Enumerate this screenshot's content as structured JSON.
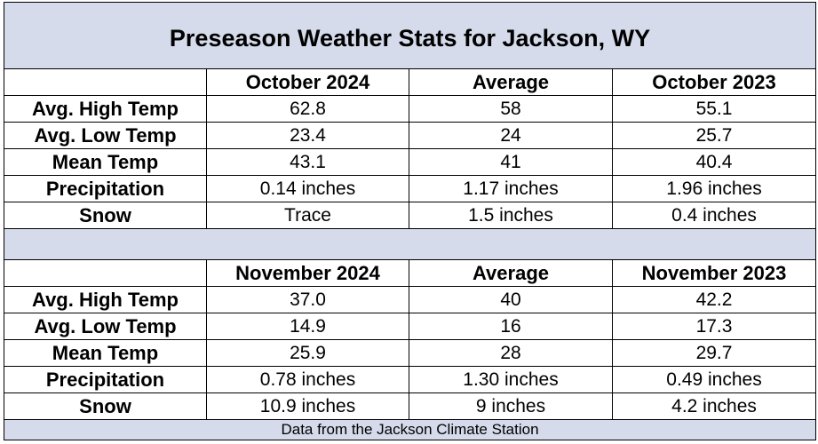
{
  "title": "Preseason Weather Stats for Jackson, WY",
  "sections": [
    {
      "headers": [
        "",
        "October 2024",
        "Average",
        "October 2023"
      ],
      "rows": [
        {
          "label": "Avg. High Temp",
          "values": [
            "62.8",
            "58",
            "55.1"
          ]
        },
        {
          "label": "Avg. Low Temp",
          "values": [
            "23.4",
            "24",
            "25.7"
          ]
        },
        {
          "label": "Mean Temp",
          "values": [
            "43.1",
            "41",
            "40.4"
          ]
        },
        {
          "label": "Precipitation",
          "values": [
            "0.14 inches",
            "1.17 inches",
            "1.96 inches"
          ]
        },
        {
          "label": "Snow",
          "values": [
            "Trace",
            "1.5 inches",
            "0.4 inches"
          ]
        }
      ]
    },
    {
      "headers": [
        "",
        "November 2024",
        "Average",
        "November 2023"
      ],
      "rows": [
        {
          "label": "Avg. High Temp",
          "values": [
            "37.0",
            "40",
            "42.2"
          ]
        },
        {
          "label": "Avg. Low Temp",
          "values": [
            "14.9",
            "16",
            "17.3"
          ]
        },
        {
          "label": "Mean Temp",
          "values": [
            "25.9",
            "28",
            "29.7"
          ]
        },
        {
          "label": "Precipitation",
          "values": [
            "0.78 inches",
            "1.30 inches",
            "0.49 inches"
          ]
        },
        {
          "label": "Snow",
          "values": [
            "10.9 inches",
            "9 inches",
            "4.2 inches"
          ]
        }
      ]
    }
  ],
  "footer": "Data from the Jackson Climate Station",
  "colors": {
    "band": "#d5dbeb",
    "border": "#000000"
  }
}
